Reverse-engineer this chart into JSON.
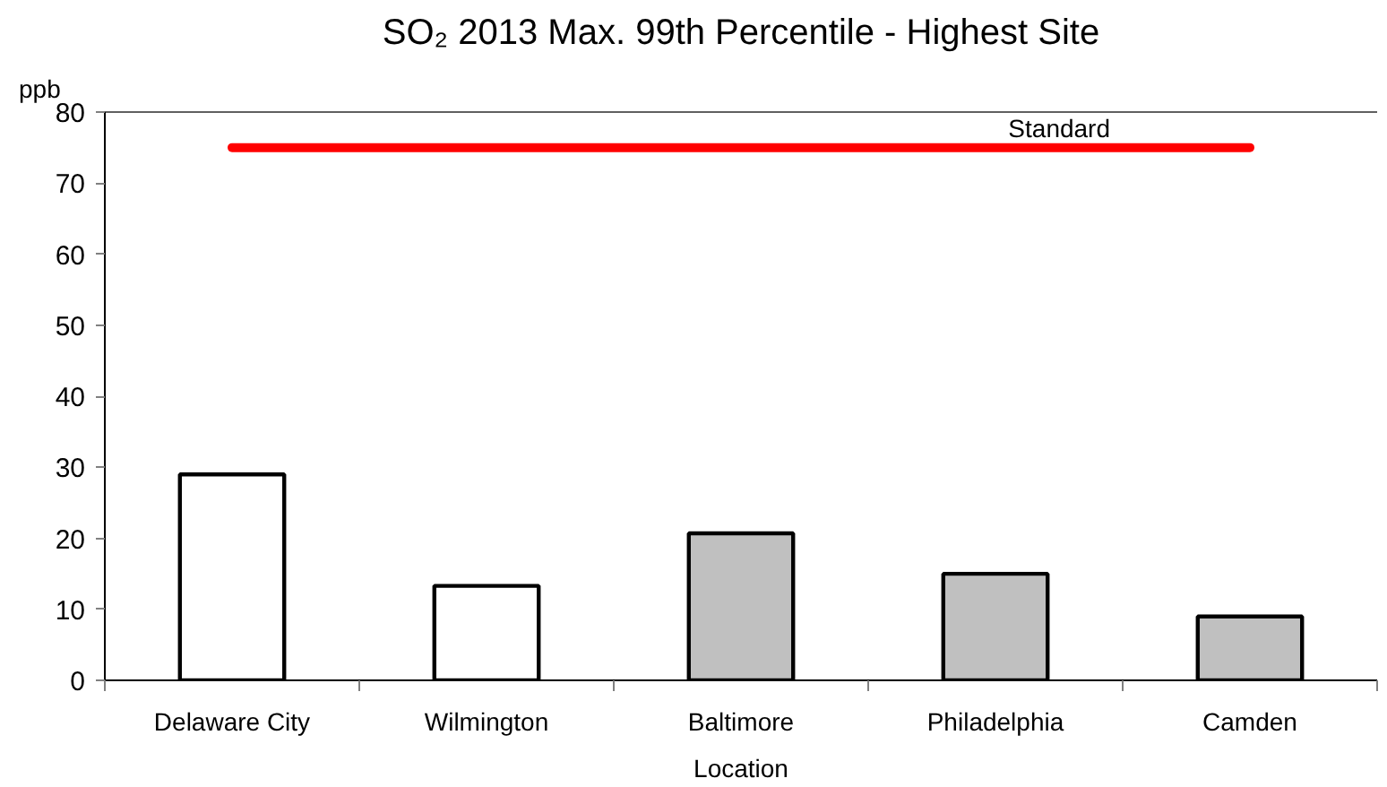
{
  "chart_data": {
    "type": "bar",
    "title": "SO₂ 2013 Max. 99th Percentile - Highest Site",
    "ylabel": "ppb",
    "xlabel": "Location",
    "categories": [
      "Delaware City",
      "Wilmington",
      "Baltimore",
      "Philadelphia",
      "Camden"
    ],
    "series": [
      {
        "colors": [
          "#ffffff",
          "#ffffff",
          "#c0c0c0",
          "#c0c0c0",
          "#c0c0c0"
        ],
        "values": [
          29,
          13.3,
          20.7,
          15,
          9
        ]
      },
      {
        "type": "line",
        "name": "Standard",
        "color": "#ff0000",
        "values": [
          75,
          75,
          75,
          75,
          75
        ]
      }
    ],
    "ylim": [
      0,
      80
    ],
    "yticks": [
      0,
      10,
      20,
      30,
      40,
      50,
      60,
      70,
      80
    ]
  }
}
